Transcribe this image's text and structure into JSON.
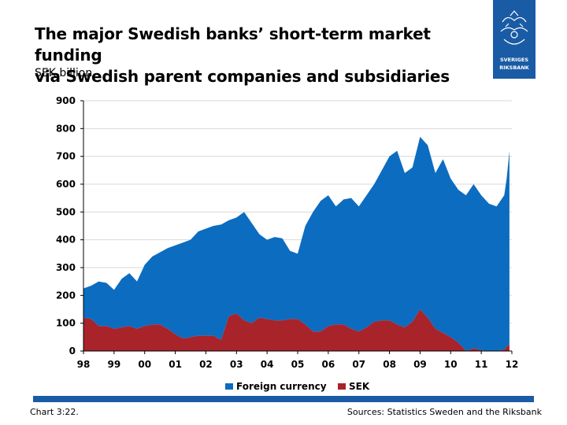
{
  "header": {
    "title_line1": "The major Swedish banks’ short-term market funding",
    "title_line2": "via Swedish parent companies and subsidiaries",
    "unit": "SEK billion"
  },
  "logo": {
    "line1": "SVERIGES",
    "line2": "RIKSBANK"
  },
  "footer": {
    "chart_id": "Chart 3:22.",
    "source": "Sources: Statistics Sweden and the Riksbank"
  },
  "colors": {
    "foreign_currency": "#0c6cc0",
    "sek": "#a8232a",
    "brand_blue": "#1a5ba5"
  },
  "chart_data": {
    "type": "area",
    "stacked": true,
    "xlim": [
      1998,
      2012
    ],
    "ylim": [
      0,
      900
    ],
    "xticks": [
      1998,
      1999,
      2000,
      2001,
      2002,
      2003,
      2004,
      2005,
      2006,
      2007,
      2008,
      2009,
      2010,
      2011,
      2012
    ],
    "xtick_labels": [
      "98",
      "99",
      "00",
      "01",
      "02",
      "03",
      "04",
      "05",
      "06",
      "07",
      "08",
      "09",
      "10",
      "11",
      "12"
    ],
    "yticks": [
      0,
      100,
      200,
      300,
      400,
      500,
      600,
      700,
      800,
      900
    ],
    "grid": "horizontal",
    "legend_position": "bottom",
    "x": [
      1998.0,
      1998.25,
      1998.5,
      1998.75,
      1999.0,
      1999.25,
      1999.5,
      1999.75,
      2000.0,
      2000.25,
      2000.5,
      2000.75,
      2001.0,
      2001.25,
      2001.5,
      2001.75,
      2002.0,
      2002.25,
      2002.5,
      2002.75,
      2003.0,
      2003.25,
      2003.5,
      2003.75,
      2004.0,
      2004.25,
      2004.5,
      2004.75,
      2005.0,
      2005.25,
      2005.5,
      2005.75,
      2006.0,
      2006.25,
      2006.5,
      2006.75,
      2007.0,
      2007.25,
      2007.5,
      2007.75,
      2008.0,
      2008.25,
      2008.5,
      2008.75,
      2009.0,
      2009.25,
      2009.5,
      2009.75,
      2010.0,
      2010.25,
      2010.5,
      2010.75,
      2011.0,
      2011.25,
      2011.5,
      2011.75,
      2011.83,
      2011.92
    ],
    "series": [
      {
        "name": "Foreign currency",
        "total": [
          225,
          235,
          250,
          245,
          220,
          260,
          280,
          250,
          310,
          340,
          355,
          370,
          380,
          390,
          400,
          430,
          440,
          450,
          455,
          470,
          480,
          500,
          460,
          420,
          400,
          410,
          405,
          360,
          350,
          450,
          500,
          540,
          560,
          520,
          545,
          550,
          520,
          560,
          600,
          650,
          700,
          720,
          640,
          660,
          770,
          740,
          640,
          690,
          620,
          580,
          560,
          600,
          560,
          530,
          520,
          560,
          620,
          720
        ],
        "values": [
          105,
          120,
          160,
          155,
          140,
          175,
          190,
          170,
          220,
          245,
          260,
          290,
          320,
          345,
          350,
          375,
          385,
          395,
          415,
          345,
          345,
          390,
          360,
          300,
          285,
          300,
          295,
          245,
          235,
          355,
          430,
          470,
          470,
          425,
          450,
          470,
          450,
          475,
          495,
          540,
          590,
          625,
          555,
          555,
          620,
          620,
          560,
          625,
          570,
          550,
          560,
          590,
          557,
          530,
          520,
          555,
          605,
          695
        ]
      },
      {
        "name": "SEK",
        "values": [
          120,
          115,
          90,
          90,
          80,
          85,
          90,
          80,
          90,
          95,
          95,
          80,
          60,
          45,
          50,
          55,
          55,
          55,
          40,
          125,
          135,
          110,
          100,
          120,
          115,
          110,
          110,
          115,
          115,
          95,
          70,
          70,
          90,
          95,
          95,
          80,
          70,
          85,
          105,
          110,
          110,
          95,
          85,
          105,
          150,
          120,
          80,
          65,
          50,
          30,
          0,
          10,
          3,
          0,
          0,
          5,
          15,
          25
        ]
      }
    ]
  }
}
